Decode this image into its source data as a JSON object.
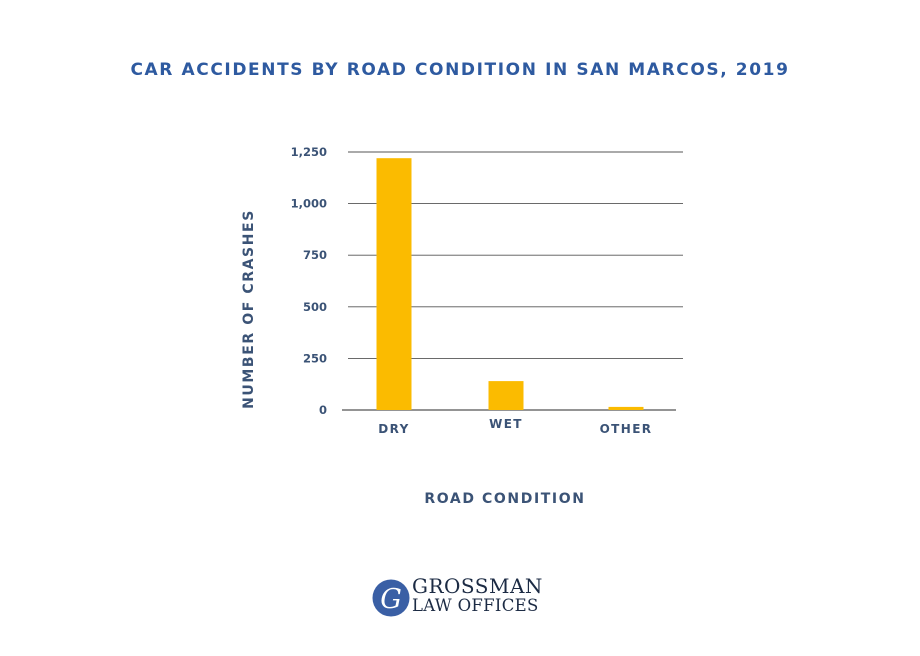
{
  "colors": {
    "bar": "#fbbb00",
    "title": "#2e5aa0",
    "axis_text": "#3b5376",
    "grid": "#555555",
    "logo_mark": "#3a5fa5"
  },
  "chart_data": {
    "type": "bar",
    "title": "CAR ACCIDENTS BY ROAD CONDITION IN SAN MARCOS, 2019",
    "xlabel": "ROAD CONDITION",
    "ylabel": "NUMBER OF CRASHES",
    "categories": [
      "DRY",
      "WET",
      "OTHER"
    ],
    "values": [
      1220,
      140,
      15
    ],
    "ylim": [
      0,
      1250
    ],
    "yticks": [
      0,
      250,
      500,
      750,
      1000,
      1250
    ],
    "ytick_labels": [
      "0",
      "250",
      "500",
      "750",
      "1,000",
      "1,250"
    ],
    "grid": true,
    "legend": "none"
  },
  "logo": {
    "icon": "g-monogram-icon",
    "letter": "G",
    "line1": "GROSSMAN",
    "line2": "LAW OFFICES"
  }
}
